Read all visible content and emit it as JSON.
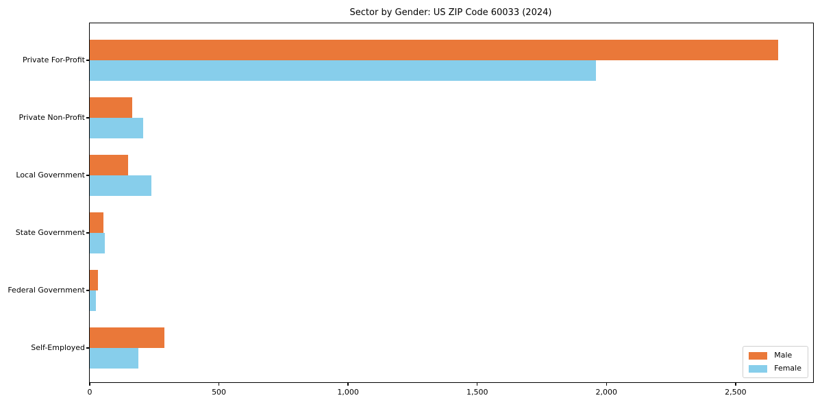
{
  "chart_data": {
    "type": "bar",
    "orientation": "horizontal",
    "title": "Sector by Gender: US ZIP Code 60033 (2024)",
    "categories": [
      "Private For-Profit",
      "Private Non-Profit",
      "Local Government",
      "State Government",
      "Federal Government",
      "Self-Employed"
    ],
    "series": [
      {
        "name": "Male",
        "color": "#EA7839",
        "values": [
          2665,
          165,
          148,
          54,
          31,
          289
        ]
      },
      {
        "name": "Female",
        "color": "#87CEEB",
        "values": [
          1960,
          207,
          239,
          58,
          25,
          188
        ]
      }
    ],
    "xlabel": "",
    "ylabel": "",
    "xlim": [
      0,
      2800
    ],
    "x_ticks": [
      0,
      500,
      1000,
      1500,
      2000,
      2500
    ],
    "x_tick_labels": [
      "0",
      "500",
      "1,000",
      "1,500",
      "2,000",
      "2,500"
    ],
    "grid": false,
    "legend_position": "lower right",
    "legend_labels": [
      "Male",
      "Female"
    ]
  }
}
